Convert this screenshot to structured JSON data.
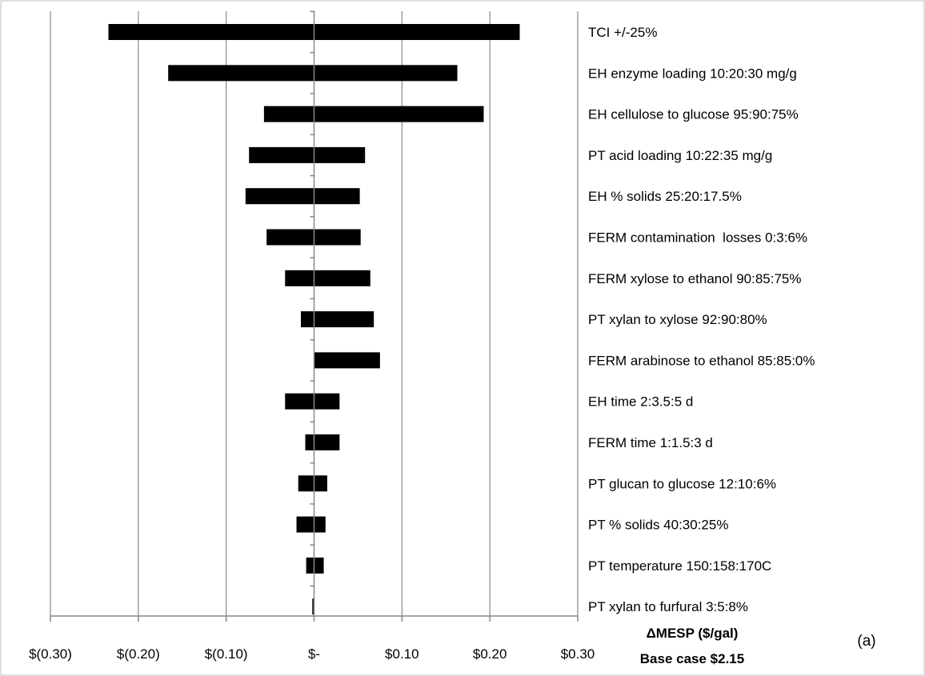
{
  "chart_data": {
    "type": "bar",
    "orientation": "horizontal",
    "subtype": "tornado",
    "categories": [
      "TCI +/-25%",
      "EH enzyme loading 10:20:30 mg/g",
      "EH cellulose to glucose 95:90:75%",
      "PT acid loading 10:22:35 mg/g",
      "EH % solids 25:20:17.5%",
      "FERM contamination  losses 0:3:6%",
      "FERM xylose to ethanol 90:85:75%",
      "PT xylan to xylose 92:90:80%",
      "FERM arabinose to ethanol 85:85:0%",
      "EH time 2:3.5:5 d",
      "FERM time 1:1.5:3 d",
      "PT glucan to glucose 12:10:6%",
      "PT % solids 40:30:25%",
      "PT temperature 150:158:170C",
      "PT xylan to furfural 3:5:8%"
    ],
    "bars": [
      {
        "low": -0.234,
        "high": 0.234
      },
      {
        "low": -0.166,
        "high": 0.163
      },
      {
        "low": -0.057,
        "high": 0.193
      },
      {
        "low": -0.074,
        "high": 0.058
      },
      {
        "low": -0.078,
        "high": 0.052
      },
      {
        "low": -0.054,
        "high": 0.053
      },
      {
        "low": -0.033,
        "high": 0.064
      },
      {
        "low": -0.015,
        "high": 0.068
      },
      {
        "low": 0.0,
        "high": 0.075
      },
      {
        "low": -0.033,
        "high": 0.029
      },
      {
        "low": -0.01,
        "high": 0.029
      },
      {
        "low": -0.018,
        "high": 0.015
      },
      {
        "low": -0.02,
        "high": 0.013
      },
      {
        "low": -0.009,
        "high": 0.011
      },
      {
        "low": -0.002,
        "high": 0.0
      }
    ],
    "xlim": [
      -0.3,
      0.3
    ],
    "x_ticks": [
      -0.3,
      -0.2,
      -0.1,
      0.0,
      0.1,
      0.2,
      0.3
    ],
    "x_tick_labels": [
      "$(0.30)",
      "$(0.20)",
      "$(0.10)",
      "$-",
      "$0.10",
      "$0.20",
      "$0.30"
    ],
    "xlabel": "ΔMESP ($/gal)",
    "xlabel_sub": "Base case $2.15",
    "annotation": "(a)",
    "grid": "vertical",
    "bar_color": "#000000",
    "grid_color": "#888888"
  }
}
